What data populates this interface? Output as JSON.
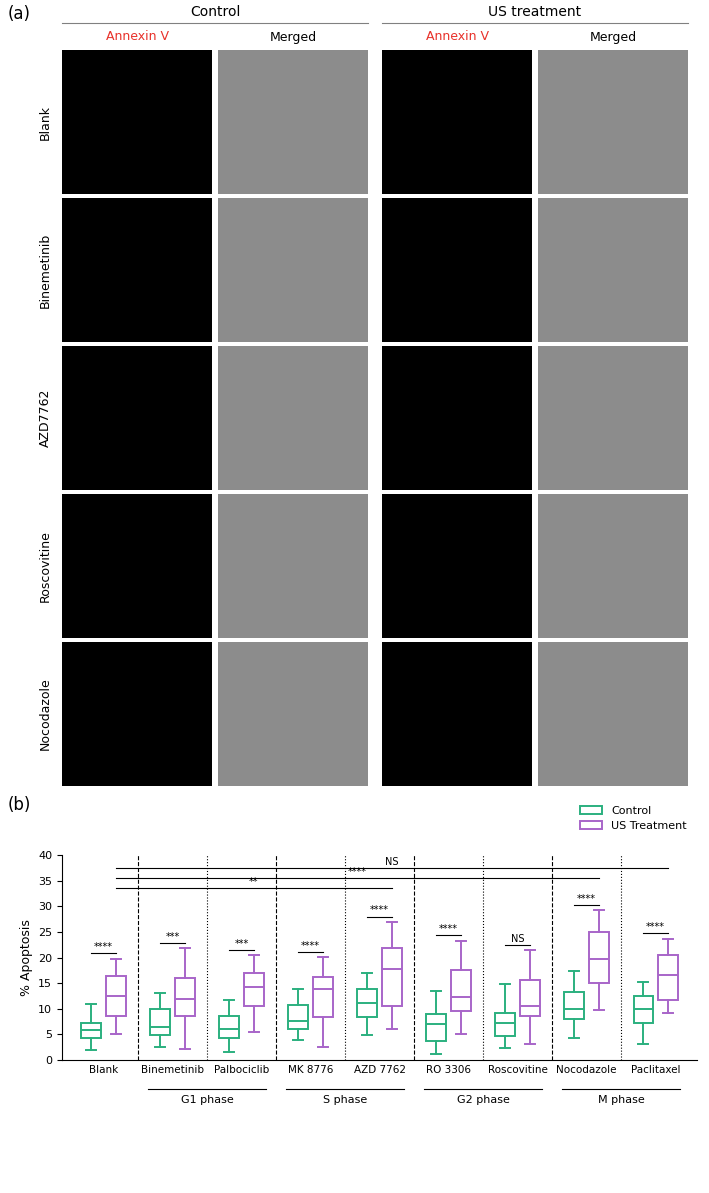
{
  "panel_a": {
    "label": "(a)",
    "groups": [
      "Control",
      "US treatment"
    ],
    "columns": [
      {
        "label": "Annexin V",
        "color": "#e8312a"
      },
      {
        "label": "Merged",
        "color": "#000000"
      }
    ],
    "rows": [
      "Blank",
      "Binemetinib",
      "AZD7762",
      "Roscovitine",
      "Nocodazole"
    ]
  },
  "chart_data": {
    "type": "box",
    "panel_label": "(b)",
    "ylabel": "% Apoptosis",
    "categories": [
      "Blank",
      "Binemetinib",
      "Palbociclib",
      "MK 8776",
      "AZD 7762",
      "RO 3306",
      "Roscovitine",
      "Nocodazole",
      "Paclitaxel"
    ],
    "ylim": [
      0,
      40
    ],
    "yticks": [
      0,
      5,
      10,
      15,
      20,
      25,
      30,
      35,
      40
    ],
    "legend": "upper right",
    "series": [
      {
        "name": "Control",
        "color": "#2bb07f",
        "boxes": [
          {
            "whislo": 2,
            "q1": 4.2,
            "med": 5.8,
            "q3": 7.3,
            "whishi": 11
          },
          {
            "whislo": 2.5,
            "q1": 4.8,
            "med": 6.5,
            "q3": 10,
            "whishi": 13
          },
          {
            "whislo": 1.5,
            "q1": 4.2,
            "med": 6,
            "q3": 8.6,
            "whishi": 11.8
          },
          {
            "whislo": 4,
            "q1": 6.1,
            "med": 7.6,
            "q3": 10.7,
            "whishi": 13.9
          },
          {
            "whislo": 4.8,
            "q1": 8.3,
            "med": 11.2,
            "q3": 13.9,
            "whishi": 17
          },
          {
            "whislo": 1.2,
            "q1": 3.8,
            "med": 7,
            "q3": 9,
            "whishi": 13.5
          },
          {
            "whislo": 2.3,
            "q1": 4.7,
            "med": 7.2,
            "q3": 9.2,
            "whishi": 14.8
          },
          {
            "whislo": 4.2,
            "q1": 8,
            "med": 10,
            "q3": 13.2,
            "whishi": 17.4
          },
          {
            "whislo": 3.2,
            "q1": 7.3,
            "med": 9.9,
            "q3": 12.5,
            "whishi": 15.3
          }
        ]
      },
      {
        "name": "US Treatment",
        "color": "#a865c9",
        "boxes": [
          {
            "whislo": 5,
            "q1": 8.6,
            "med": 12.5,
            "q3": 16.3,
            "whishi": 19.8
          },
          {
            "whislo": 2.2,
            "q1": 8.5,
            "med": 12,
            "q3": 16,
            "whishi": 21.8
          },
          {
            "whislo": 5.5,
            "q1": 10.5,
            "med": 14.3,
            "q3": 16.9,
            "whishi": 20.4
          },
          {
            "whislo": 2.5,
            "q1": 8.3,
            "med": 13.8,
            "q3": 16.2,
            "whishi": 20.1
          },
          {
            "whislo": 6,
            "q1": 10.5,
            "med": 17.7,
            "q3": 21.8,
            "whishi": 27
          },
          {
            "whislo": 5,
            "q1": 9.6,
            "med": 12.3,
            "q3": 17.6,
            "whishi": 23.3
          },
          {
            "whislo": 3.2,
            "q1": 8.5,
            "med": 10.6,
            "q3": 15.7,
            "whishi": 21.5
          },
          {
            "whislo": 9.8,
            "q1": 15,
            "med": 19.7,
            "q3": 25,
            "whishi": 29.3
          },
          {
            "whislo": 9.2,
            "q1": 11.8,
            "med": 16.5,
            "q3": 20.4,
            "whishi": 23.7
          }
        ]
      }
    ],
    "pair_significance": [
      "****",
      "***",
      "***",
      "****",
      "****",
      "****",
      "NS",
      "****",
      "****"
    ],
    "comparisons": [
      {
        "from": "Blank",
        "to": "AZD 7762",
        "label": "**"
      },
      {
        "from": "Blank",
        "to": "Nocodazole",
        "label": "****"
      },
      {
        "from": "Blank",
        "to": "Paclitaxel",
        "label": "NS"
      }
    ],
    "groups": [
      {
        "label": "G1 phase",
        "categories": [
          "Binemetinib",
          "Palbociclib"
        ]
      },
      {
        "label": "S phase",
        "categories": [
          "MK 8776",
          "AZD 7762"
        ]
      },
      {
        "label": "G2 phase",
        "categories": [
          "RO 3306",
          "Roscovitine"
        ]
      },
      {
        "label": "M phase",
        "categories": [
          "Nocodazole",
          "Paclitaxel"
        ]
      }
    ]
  }
}
